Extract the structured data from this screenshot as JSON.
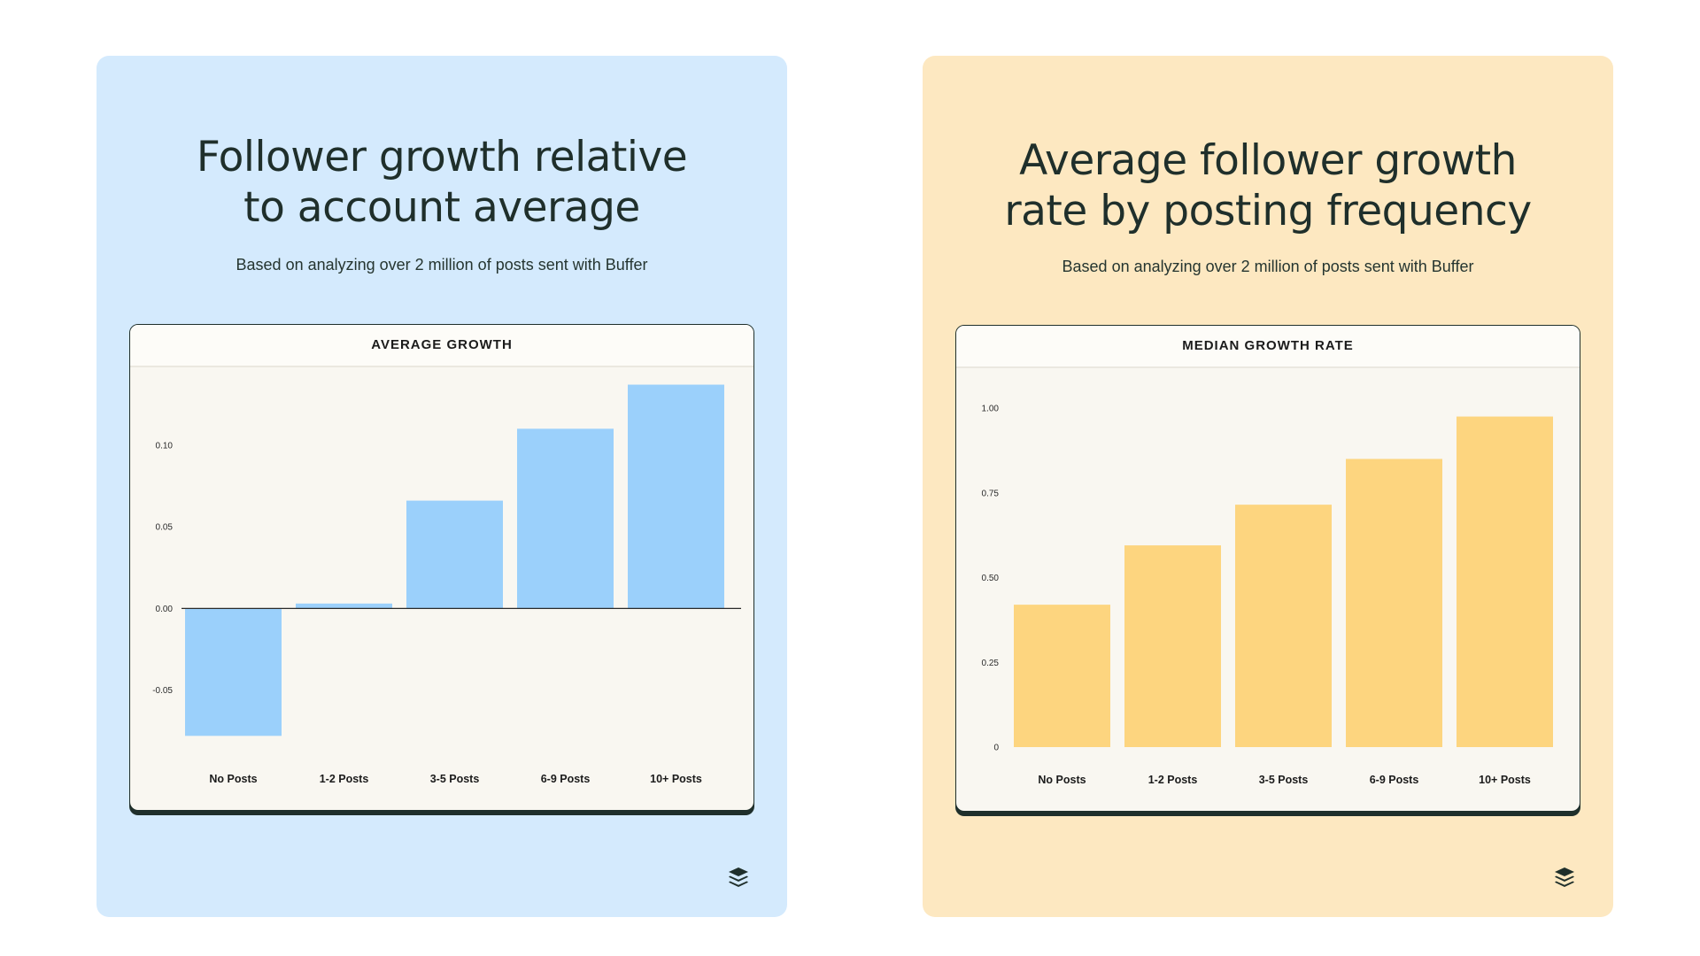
{
  "cards": [
    {
      "id": "left",
      "title_lines": [
        "Follower growth relative",
        "to account average"
      ],
      "subtitle": "Based on analyzing over 2 million of posts sent with Buffer",
      "chart_title": "AVERAGE GROWTH",
      "logo_icon": "buffer-logo-icon"
    },
    {
      "id": "right",
      "title_lines": [
        "Average follower growth",
        "rate by posting frequency"
      ],
      "subtitle": "Based on analyzing over 2 million of posts sent with Buffer",
      "chart_title": "MEDIAN GROWTH RATE",
      "logo_icon": "buffer-logo-icon"
    }
  ],
  "chart_data": [
    {
      "type": "bar",
      "title": "AVERAGE GROWTH",
      "categories": [
        "No Posts",
        "1-2 Posts",
        "3-5 Posts",
        "6-9 Posts",
        "10+ Posts"
      ],
      "values": [
        -0.078,
        0.003,
        0.066,
        0.11,
        0.137
      ],
      "yticks": [
        0.1,
        0.05,
        0.0,
        -0.05
      ],
      "ytick_labels": [
        "0.10",
        "0.05",
        "0.00",
        "-0.05"
      ],
      "ylim": [
        -0.08,
        0.14
      ],
      "zero_line": true,
      "grid": false,
      "color": "#9bd0fb"
    },
    {
      "type": "bar",
      "title": "MEDIAN GROWTH RATE",
      "categories": [
        "No Posts",
        "1-2 Posts",
        "3-5 Posts",
        "6-9 Posts",
        "10+ Posts"
      ],
      "values": [
        0.42,
        0.595,
        0.715,
        0.85,
        0.975
      ],
      "yticks": [
        1.0,
        0.75,
        0.5,
        0.25,
        0
      ],
      "ytick_labels": [
        "1.00",
        "0.75",
        "0.50",
        "0.25",
        "0"
      ],
      "ylim": [
        0,
        1.0
      ],
      "zero_line": false,
      "grid": false,
      "color": "#fdd57f"
    }
  ]
}
